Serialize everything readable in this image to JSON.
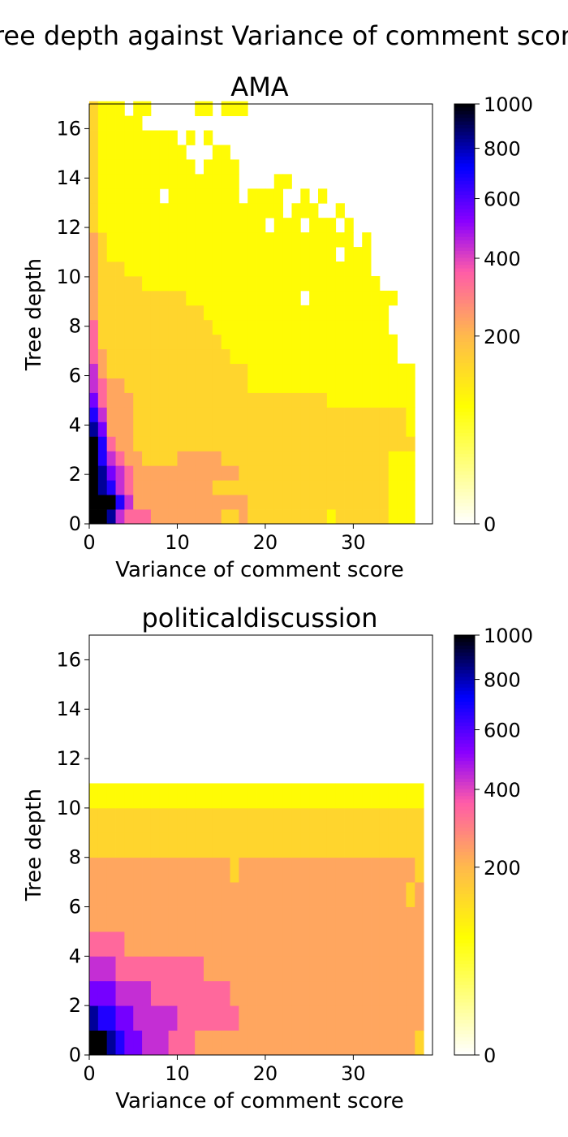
{
  "figure_title": "Tree depth against Variance of comment score",
  "chart_data": [
    {
      "type": "heatmap",
      "title": "AMA",
      "xlabel": "Variance of comment score",
      "ylabel": "Tree depth",
      "xlim": [
        0,
        39
      ],
      "ylim": [
        0,
        17
      ],
      "xticks": [
        0,
        10,
        20,
        30
      ],
      "yticks": [
        0,
        2,
        4,
        6,
        8,
        10,
        12,
        14,
        16
      ],
      "colorbar": {
        "ticks": [
          0,
          200,
          400,
          600,
          800,
          1000
        ],
        "range": [
          0,
          1000
        ],
        "scale": "sqrt",
        "colormap": [
          "#ffffff",
          "#ffff00",
          "#ffb84d",
          "#ff5ca8",
          "#8a00ff",
          "#0000ff",
          "#000000"
        ]
      },
      "grid": {
        "x_bin_width": 1.0,
        "y_bin_height": 0.59,
        "rows": [
          "9985444333333332232222222221222222111",
          "9997533333333333332222222222222222111",
          "9875433333333322222222222222222222111",
          "9865433333333333322222222222222222111",
          "9754332222333332222222222222222222111",
          "9743322222222222222222222222222222222",
          "8633322222222222222222222222222222221",
          "7533322222222222222222222222222222221",
          "6433322222222222222222222221111111111",
          "5433222222222222221111111111111111111",
          "5322222222222222221111111111111111111",
          "4322222222222222111111111111111111100",
          "4222222222222221111111111111111111100",
          "4222222222222211111111111111111111000",
          "3222222222222111111111111111111111000",
          "3222222222211111111111110111111111100",
          "3222221111111111111111111111111110000",
          "3222111111111111111111111111111100000",
          "3211111111111111111111111111011100000",
          "3211111111111111111111111111110100000",
          "2111111111111111111101110111010000000",
          "2111111111111111111111011100100000000",
          "2111111101111111101111001010000000000",
          "2111111111111111100001100000000000000",
          "2111111111110111100000000000000000000",
          "2111111111100011000000000000000000000",
          "2111111111010100000000000000000000000",
          "2111110000000000000000000000000000000",
          "2111011000001101110000000000000000000"
        ]
      }
    },
    {
      "type": "heatmap",
      "title": "politicaldiscussion",
      "xlabel": "Variance of comment score",
      "ylabel": "Tree depth",
      "xlim": [
        0,
        39
      ],
      "ylim": [
        0,
        17
      ],
      "xticks": [
        0,
        10,
        20,
        30
      ],
      "yticks": [
        0,
        2,
        4,
        6,
        8,
        10,
        12,
        14,
        16
      ],
      "colorbar": {
        "ticks": [
          0,
          200,
          400,
          600,
          800,
          1000
        ],
        "range": [
          0,
          1000
        ],
        "scale": "sqrt",
        "colormap": [
          "#ffffff",
          "#ffff00",
          "#ffb84d",
          "#ff5ca8",
          "#8a00ff",
          "#0000ff",
          "#000000"
        ]
      },
      "grid": {
        "x_bin_width": 1.0,
        "y_bin_height": 1.0,
        "rows": [
          "99876655544433333333333333333333333332",
          "87766555554444444333333333333333333333",
          "66655554444444443333333333333333333333",
          "55544444444443333333333333333333333333",
          "44443333333333333333333333333333333333",
          "33333333333333333333333333333333333333",
          "33333333333333333333333333333333333323",
          "33333333333333332333333333333333333332",
          "22222222222222222222222222222222222222",
          "22222222222222222222222222222222222222",
          "11111111111111111111111111111111111111"
        ]
      }
    }
  ]
}
